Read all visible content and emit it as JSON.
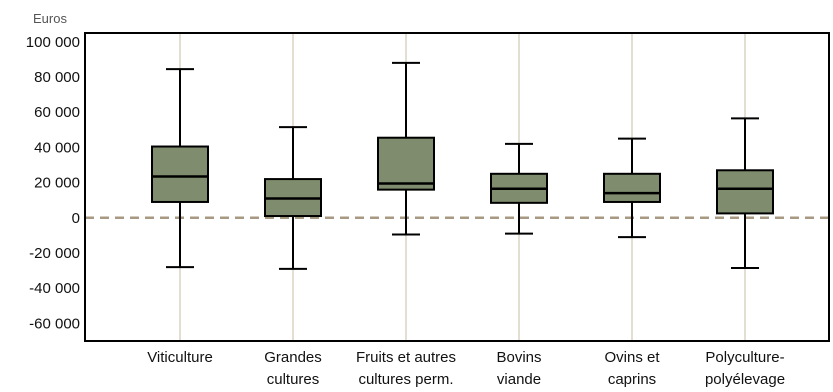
{
  "chart_data": {
    "type": "box",
    "ylabel": "Euros",
    "ylim": [
      -70000,
      105000
    ],
    "yticks": [
      100000,
      80000,
      60000,
      40000,
      20000,
      0,
      -20000,
      -40000,
      -60000
    ],
    "ytick_labels": [
      "100 000",
      "80 000",
      "60 000",
      "40 000",
      "20 000",
      "0",
      "-20 000",
      "-40 000",
      "-60 000"
    ],
    "zero_line": "dashed",
    "colors": {
      "box_fill": "#7f8c6e",
      "zero_line": "#a89a82",
      "grid": "#c8bca6"
    },
    "categories": [
      {
        "lines": [
          "Viticulture"
        ],
        "whisker_low": -28000,
        "q1": 9000,
        "median": 23500,
        "q3": 40500,
        "whisker_high": 84500
      },
      {
        "lines": [
          "Grandes",
          "cultures"
        ],
        "whisker_low": -29000,
        "q1": 1000,
        "median": 11000,
        "q3": 22000,
        "whisker_high": 51500
      },
      {
        "lines": [
          "Fruits et autres",
          "cultures perm."
        ],
        "whisker_low": -9500,
        "q1": 16000,
        "median": 19500,
        "q3": 45500,
        "whisker_high": 88000
      },
      {
        "lines": [
          "Bovins",
          "viande"
        ],
        "whisker_low": -9000,
        "q1": 8500,
        "median": 16500,
        "q3": 25000,
        "whisker_high": 42000
      },
      {
        "lines": [
          "Ovins et",
          "caprins"
        ],
        "whisker_low": -11000,
        "q1": 9000,
        "median": 14000,
        "q3": 25000,
        "whisker_high": 45000
      },
      {
        "lines": [
          "Polyculture-",
          "polyélevage"
        ],
        "whisker_low": -28500,
        "q1": 2500,
        "median": 16500,
        "q3": 27000,
        "whisker_high": 56500
      }
    ]
  }
}
